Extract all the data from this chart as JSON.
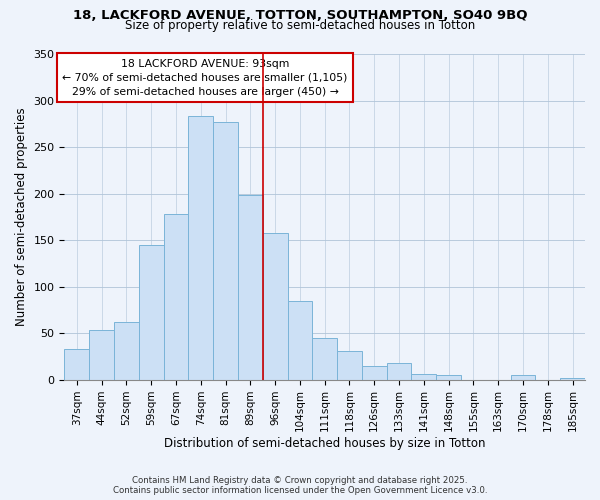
{
  "title1": "18, LACKFORD AVENUE, TOTTON, SOUTHAMPTON, SO40 9BQ",
  "title2": "Size of property relative to semi-detached houses in Totton",
  "xlabel": "Distribution of semi-detached houses by size in Totton",
  "ylabel": "Number of semi-detached properties",
  "bar_labels": [
    "37sqm",
    "44sqm",
    "52sqm",
    "59sqm",
    "67sqm",
    "74sqm",
    "81sqm",
    "89sqm",
    "96sqm",
    "104sqm",
    "111sqm",
    "118sqm",
    "126sqm",
    "133sqm",
    "141sqm",
    "148sqm",
    "155sqm",
    "163sqm",
    "170sqm",
    "178sqm",
    "185sqm"
  ],
  "bar_values": [
    33,
    53,
    62,
    145,
    178,
    283,
    277,
    198,
    158,
    84,
    45,
    31,
    15,
    18,
    6,
    5,
    0,
    0,
    5,
    0,
    2
  ],
  "bar_color": "#cce0f5",
  "bar_edge_color": "#7ab4d8",
  "annotation_title": "18 LACKFORD AVENUE: 93sqm",
  "annotation_line1": "← 70% of semi-detached houses are smaller (1,105)",
  "annotation_line2": "29% of semi-detached houses are larger (450) →",
  "vline_color": "#cc0000",
  "ylim": [
    0,
    350
  ],
  "yticks": [
    0,
    50,
    100,
    150,
    200,
    250,
    300,
    350
  ],
  "footer1": "Contains HM Land Registry data © Crown copyright and database right 2025.",
  "footer2": "Contains public sector information licensed under the Open Government Licence v3.0.",
  "background_color": "#eef3fb"
}
